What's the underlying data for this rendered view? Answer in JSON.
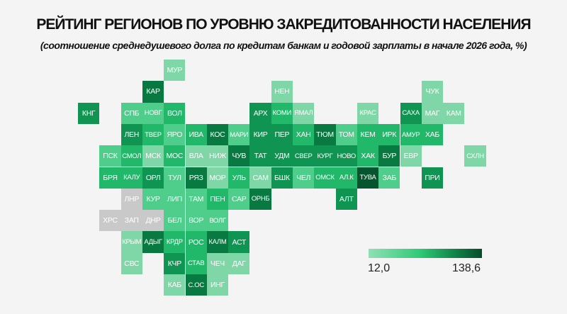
{
  "title": "РЕЙТИНГ РЕГИОНОВ ПО УРОВНЮ ЗАКРЕДИТОВАННОСТИ НАСЕЛЕНИЯ",
  "subtitle": "(соотношение среднедушевого долга по кредитам банкам и годовой зарплаты в начале 2026 года, %)",
  "legend": {
    "min_label": "12,0",
    "max_label": "138,6",
    "min": 12.0,
    "max": 138.6,
    "colors": [
      "#8fe0b5",
      "#2ecb77",
      "#0e7a44",
      "#064d2a"
    ]
  },
  "shade_colors": {
    "0": "#c9c9c9",
    "1": "#7fd6a6",
    "2": "#4fcd8a",
    "3": "#22b86a",
    "4": "#0f9452",
    "5": "#087a41",
    "6": "#05562e"
  },
  "regions": [
    {
      "label": "МУР",
      "level": 1
    },
    {
      "label": "КАР",
      "level": 5
    },
    {
      "label": "НЕН",
      "level": 1
    },
    {
      "label": "ЧУК",
      "level": 1
    },
    {
      "label": "КНГ",
      "level": 4
    },
    {
      "label": "СПБ",
      "level": 2
    },
    {
      "label": "НОВГ",
      "level": 2
    },
    {
      "label": "ВОЛ",
      "level": 3
    },
    {
      "label": "АРХ",
      "level": 4
    },
    {
      "label": "КОМИ",
      "level": 3
    },
    {
      "label": "ЯМАЛ",
      "level": 1
    },
    {
      "label": "КРАС",
      "level": 1
    },
    {
      "label": "САХА",
      "level": 4
    },
    {
      "label": "МАГ",
      "level": 1
    },
    {
      "label": "КАМ",
      "level": 1
    },
    {
      "label": "ЛЕН",
      "level": 4
    },
    {
      "label": "ТВЕР",
      "level": 3
    },
    {
      "label": "ЯРО",
      "level": 2
    },
    {
      "label": "ИВА",
      "level": 3
    },
    {
      "label": "КОС",
      "level": 5
    },
    {
      "label": "МАРИ",
      "level": 2
    },
    {
      "label": "КИР",
      "level": 4
    },
    {
      "label": "ПЕР",
      "level": 4
    },
    {
      "label": "ХАН",
      "level": 3
    },
    {
      "label": "ТЮМ",
      "level": 5
    },
    {
      "label": "ТОМ",
      "level": 2
    },
    {
      "label": "КЕМ",
      "level": 3
    },
    {
      "label": "ИРК",
      "level": 3
    },
    {
      "label": "АМУР",
      "level": 3
    },
    {
      "label": "ХАБ",
      "level": 3
    },
    {
      "label": "ПСК",
      "level": 2
    },
    {
      "label": "СМОЛ",
      "level": 3
    },
    {
      "label": "МСК",
      "level": 1
    },
    {
      "label": "МОС",
      "level": 3
    },
    {
      "label": "ВЛА",
      "level": 1
    },
    {
      "label": "НИЖ",
      "level": 1
    },
    {
      "label": "ЧУВ",
      "level": 5
    },
    {
      "label": "ТАТ",
      "level": 4
    },
    {
      "label": "УДМ",
      "level": 4
    },
    {
      "label": "СВЕР",
      "level": 4
    },
    {
      "label": "КУРГ",
      "level": 4
    },
    {
      "label": "НОВО",
      "level": 4
    },
    {
      "label": "ХАК",
      "level": 3
    },
    {
      "label": "БУР",
      "level": 5
    },
    {
      "label": "ЕВР",
      "level": 1
    },
    {
      "label": "СХЛН",
      "level": 1
    },
    {
      "label": "БРЯ",
      "level": 3
    },
    {
      "label": "КАЛУ",
      "level": 3
    },
    {
      "label": "ОРЛ",
      "level": 4
    },
    {
      "label": "ТУЛ",
      "level": 2
    },
    {
      "label": "РЯЗ",
      "level": 5
    },
    {
      "label": "МОР",
      "level": 1
    },
    {
      "label": "УЛЬ",
      "level": 3
    },
    {
      "label": "САМ",
      "level": 1
    },
    {
      "label": "БШК",
      "level": 4
    },
    {
      "label": "ЧЕЛ",
      "level": 2
    },
    {
      "label": "ОМСК",
      "level": 3
    },
    {
      "label": "АЛ.К",
      "level": 3
    },
    {
      "label": "ТУВА",
      "level": 6
    },
    {
      "label": "ЗАБ",
      "level": 2
    },
    {
      "label": "ПРИ",
      "level": 4
    },
    {
      "label": "ЛНР",
      "level": 0
    },
    {
      "label": "КУР",
      "level": 2
    },
    {
      "label": "ЛИП",
      "level": 2
    },
    {
      "label": "ТАМ",
      "level": 2
    },
    {
      "label": "ПЕН",
      "level": 3
    },
    {
      "label": "САР",
      "level": 2
    },
    {
      "label": "ОРНБ",
      "level": 5
    },
    {
      "label": "АЛТ",
      "level": 4
    },
    {
      "label": "ХРС",
      "level": 0
    },
    {
      "label": "ЗАП",
      "level": 0
    },
    {
      "label": "ДНР",
      "level": 0
    },
    {
      "label": "БЕЛ",
      "level": 2
    },
    {
      "label": "ВОР",
      "level": 2
    },
    {
      "label": "ВОЛГ",
      "level": 2
    },
    {
      "label": "КРЫМ",
      "level": 1
    },
    {
      "label": "АДЫГ",
      "level": 5
    },
    {
      "label": "КРДР",
      "level": 3
    },
    {
      "label": "РОС",
      "level": 3
    },
    {
      "label": "КАЛМ",
      "level": 5
    },
    {
      "label": "АСТ",
      "level": 4
    },
    {
      "label": "СВС",
      "level": 1
    },
    {
      "label": "КЧР",
      "level": 4
    },
    {
      "label": "СТАВ",
      "level": 3
    },
    {
      "label": "ЧЕЧ",
      "level": 1
    },
    {
      "label": "ДАГ",
      "level": 1
    },
    {
      "label": "КАБ",
      "level": 1
    },
    {
      "label": "С.ОС",
      "level": 5
    },
    {
      "label": "ИНГ",
      "level": 1
    }
  ]
}
